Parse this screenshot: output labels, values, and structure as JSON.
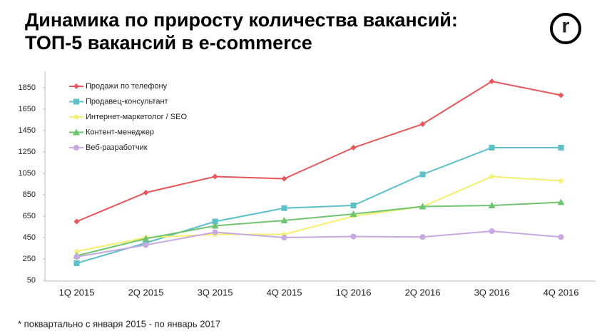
{
  "chart_data": {
    "type": "line",
    "title": "Динамика по приросту количества вакансий:",
    "subtitle": "ТОП-5 вакансий в e-commerce",
    "logo": "r",
    "note": "* поквартально с января 2015 - по январь 2017",
    "categories": [
      "1Q 2015",
      "2Q 2015",
      "3Q 2015",
      "4Q 2015",
      "1Q 2016",
      "2Q 2016",
      "3Q 2016",
      "4Q 2016"
    ],
    "series": [
      {
        "name": "Продажи по телефону",
        "color": "#e8555a",
        "marker": "diamond",
        "values": [
          600,
          870,
          1020,
          1000,
          1290,
          1510,
          1910,
          1780
        ]
      },
      {
        "name": "Продавец-консультант",
        "color": "#5bc0c8",
        "marker": "square",
        "values": [
          210,
          400,
          600,
          725,
          750,
          1040,
          1290,
          1290
        ]
      },
      {
        "name": "Интернет-маркетолог / SEO",
        "color": "#f5ef6e",
        "marker": "star",
        "values": [
          320,
          450,
          480,
          480,
          650,
          740,
          1020,
          980
        ]
      },
      {
        "name": "Контент-менеджер",
        "color": "#6fc46f",
        "marker": "triangle",
        "values": [
          280,
          440,
          560,
          610,
          670,
          740,
          750,
          780
        ]
      },
      {
        "name": "Веб-разработчик",
        "color": "#c8a8e0",
        "marker": "circle",
        "values": [
          270,
          380,
          500,
          450,
          460,
          455,
          510,
          455
        ]
      }
    ],
    "ylim": [
      50,
      2000
    ],
    "yticks": [
      50,
      250,
      450,
      650,
      850,
      1050,
      1250,
      1450,
      1650,
      1850
    ],
    "grid": false,
    "legend": "top-left"
  }
}
